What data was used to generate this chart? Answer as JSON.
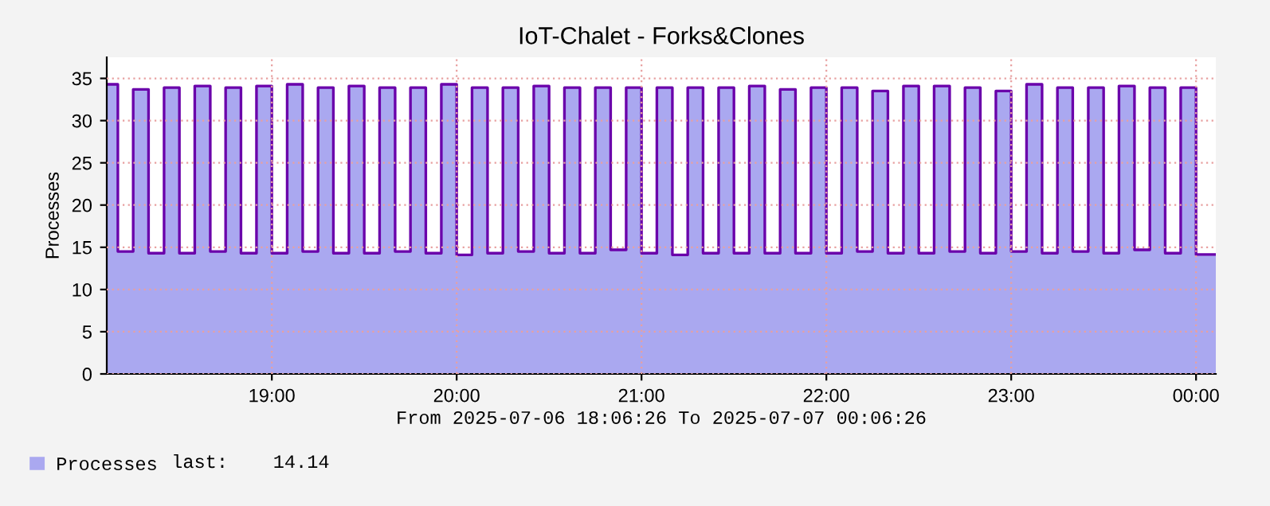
{
  "chart_data": {
    "type": "area",
    "title": "IoT-Chalet - Forks&Clones",
    "xlabel": "From 2025-07-06 18:06:26 To 2025-07-07 00:06:26",
    "ylabel": "Processes",
    "x": [
      18.107,
      18.167,
      18.25,
      18.333,
      18.417,
      18.5,
      18.583,
      18.667,
      18.75,
      18.833,
      18.917,
      19.0,
      19.083,
      19.167,
      19.25,
      19.333,
      19.417,
      19.5,
      19.583,
      19.667,
      19.75,
      19.833,
      19.917,
      20.0,
      20.083,
      20.167,
      20.25,
      20.333,
      20.417,
      20.5,
      20.583,
      20.667,
      20.75,
      20.833,
      20.917,
      21.0,
      21.083,
      21.167,
      21.25,
      21.333,
      21.417,
      21.5,
      21.583,
      21.667,
      21.75,
      21.833,
      21.917,
      22.0,
      22.083,
      22.167,
      22.25,
      22.333,
      22.417,
      22.5,
      22.583,
      22.667,
      22.75,
      22.833,
      22.917,
      23.0,
      23.083,
      23.167,
      23.25,
      23.333,
      23.417,
      23.5,
      23.583,
      23.667,
      23.75,
      23.833,
      23.917,
      24.0,
      24.107
    ],
    "series": [
      {
        "name": "Processes",
        "color": "#aaa8f0",
        "values": [
          34.3,
          14.5,
          33.7,
          14.3,
          33.9,
          14.3,
          34.1,
          14.5,
          33.9,
          14.3,
          34.1,
          14.3,
          34.3,
          14.5,
          33.9,
          14.3,
          34.1,
          14.3,
          33.9,
          14.5,
          33.9,
          14.3,
          34.3,
          14.1,
          33.9,
          14.3,
          33.9,
          14.5,
          34.1,
          14.3,
          33.9,
          14.3,
          33.9,
          14.7,
          33.9,
          14.3,
          33.9,
          14.1,
          33.9,
          14.3,
          33.9,
          14.3,
          34.1,
          14.3,
          33.7,
          14.3,
          33.9,
          14.3,
          33.9,
          14.5,
          33.5,
          14.3,
          34.1,
          14.3,
          34.1,
          14.5,
          33.9,
          14.3,
          33.5,
          14.5,
          34.3,
          14.3,
          33.9,
          14.5,
          33.9,
          14.3,
          34.1,
          14.7,
          33.9,
          14.3,
          33.9,
          14.14,
          14.14
        ]
      },
      {
        "type": "step",
        "color": "#6a00aa",
        "line_style": "solid",
        "values": [
          34.3,
          14.5,
          33.7,
          14.3,
          33.9,
          14.3,
          34.1,
          14.5,
          33.9,
          14.3,
          34.1,
          14.3,
          34.3,
          14.5,
          33.9,
          14.3,
          34.1,
          14.3,
          33.9,
          14.5,
          33.9,
          14.3,
          34.3,
          14.1,
          33.9,
          14.3,
          33.9,
          14.5,
          34.1,
          14.3,
          33.9,
          14.3,
          33.9,
          14.7,
          33.9,
          14.3,
          33.9,
          14.1,
          33.9,
          14.3,
          33.9,
          14.3,
          34.1,
          14.3,
          33.7,
          14.3,
          33.9,
          14.3,
          33.9,
          14.5,
          33.5,
          14.3,
          34.1,
          14.3,
          34.1,
          14.5,
          33.9,
          14.3,
          33.5,
          14.5,
          34.3,
          14.3,
          33.9,
          14.5,
          33.9,
          14.3,
          34.1,
          14.7,
          33.9,
          14.3,
          33.9,
          14.14,
          14.14
        ]
      }
    ],
    "xlim": [
      18.107,
      24.107
    ],
    "xticks": [
      {
        "value": 19,
        "label": "19:00"
      },
      {
        "value": 20,
        "label": "20:00"
      },
      {
        "value": 21,
        "label": "21:00"
      },
      {
        "value": 22,
        "label": "22:00"
      },
      {
        "value": 23,
        "label": "23:00"
      },
      {
        "value": 24,
        "label": "00:00"
      }
    ],
    "ylim": [
      0,
      37.5
    ],
    "yticks": [
      0,
      5,
      10,
      15,
      20,
      25,
      30,
      35
    ],
    "grid": true,
    "legend": "bottom left",
    "annotations": [
      "last:    14.14"
    ]
  }
}
